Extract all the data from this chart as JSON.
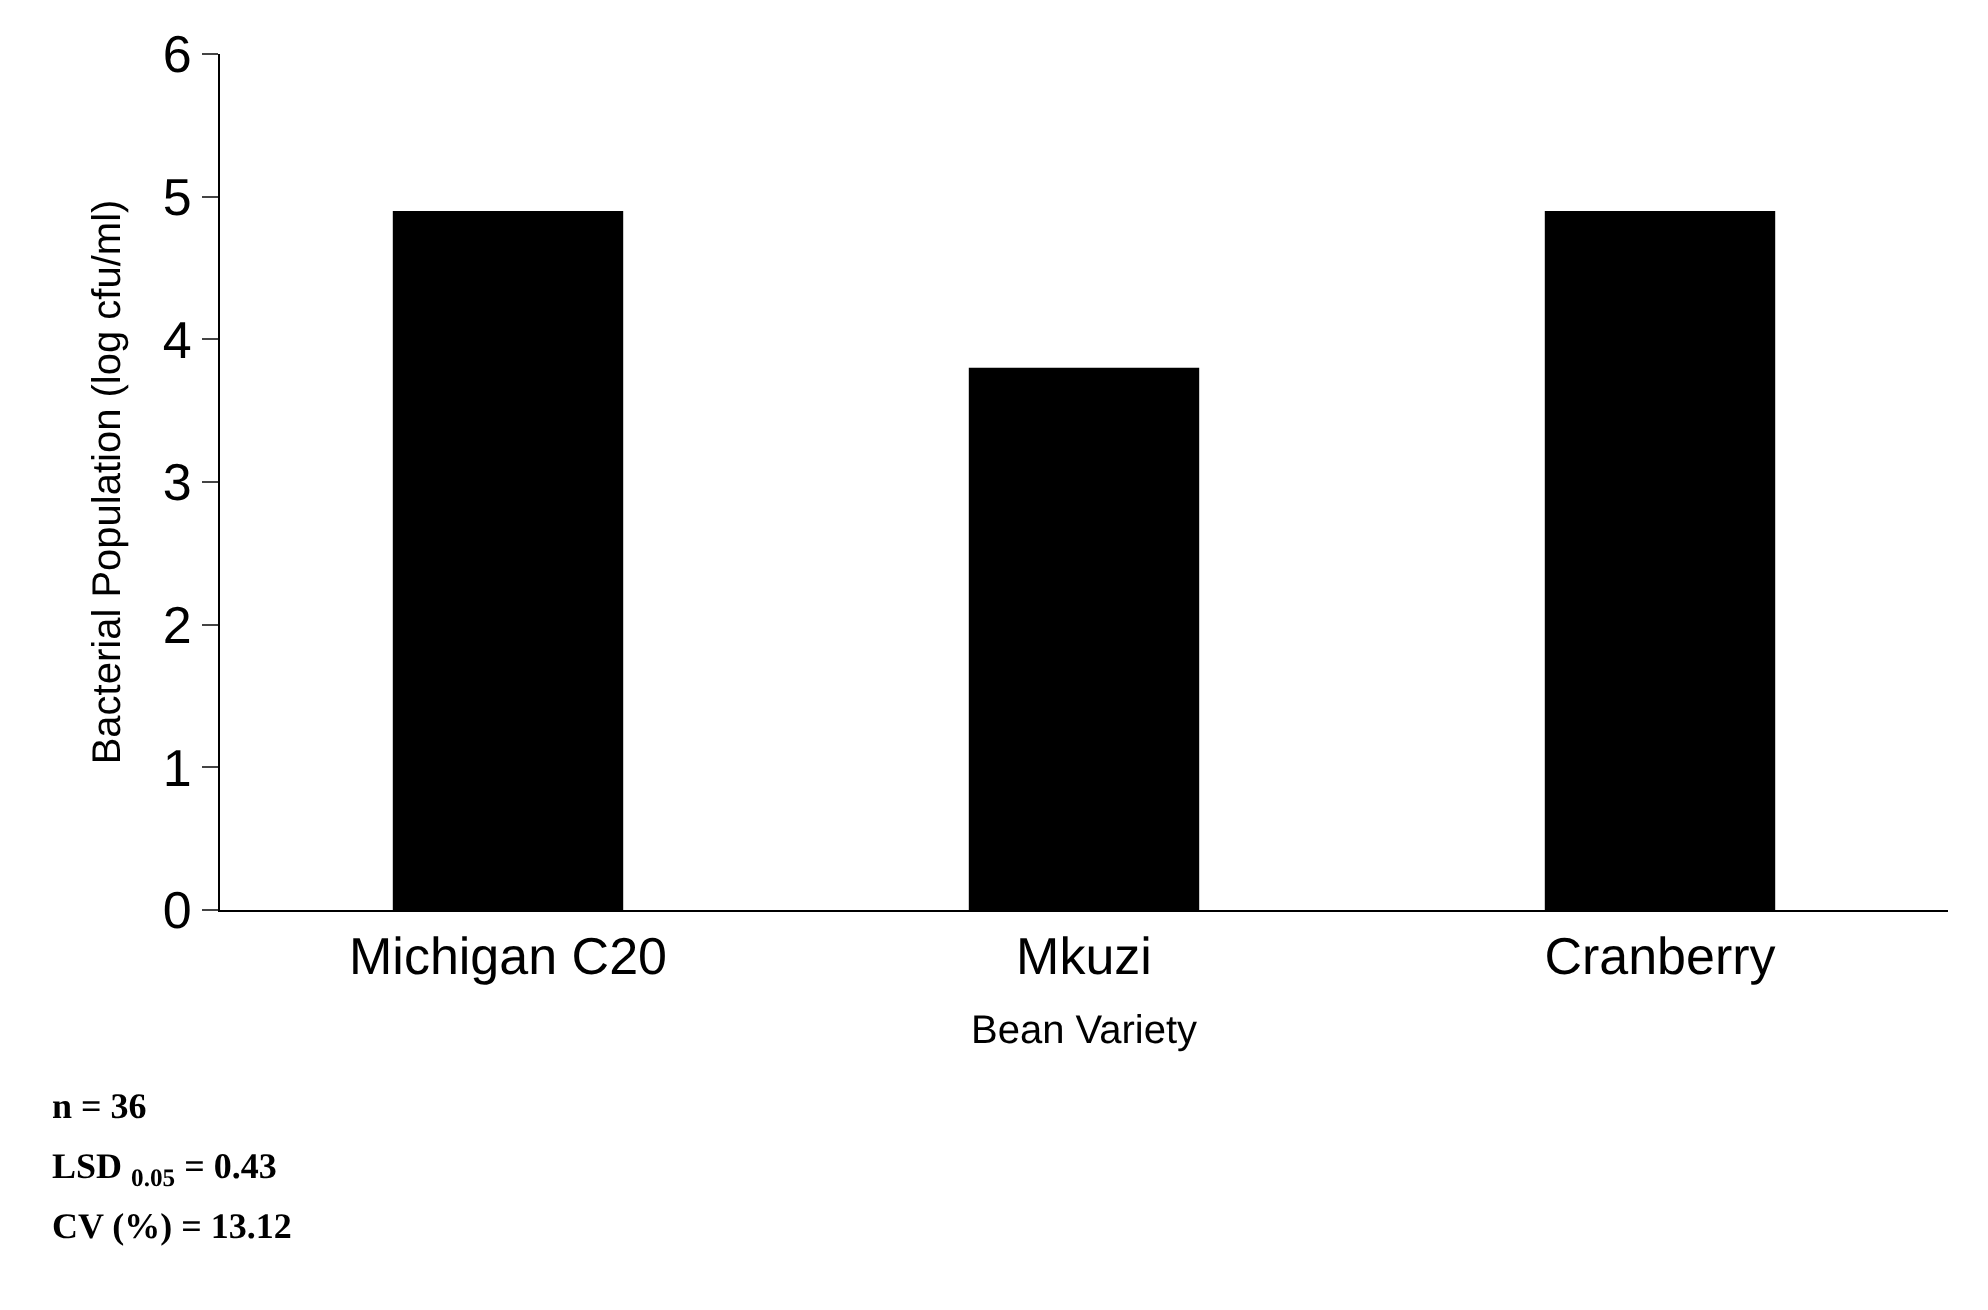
{
  "chart_data": {
    "type": "bar",
    "categories": [
      "Michigan C20",
      "Mkuzi",
      "Cranberry"
    ],
    "values": [
      4.9,
      3.8,
      4.9
    ],
    "color": "#000000",
    "ylim": [
      0,
      6
    ],
    "yticks": [
      0,
      1,
      2,
      3,
      4,
      5,
      6
    ],
    "xlabel": "Bean Variety",
    "ylabel": "Bacterial Population (log cfu/ml)",
    "annotations": [
      "n = 36",
      "LSD $_{0.05}$ = 0.43",
      "CV (%) = 13.12"
    ]
  }
}
